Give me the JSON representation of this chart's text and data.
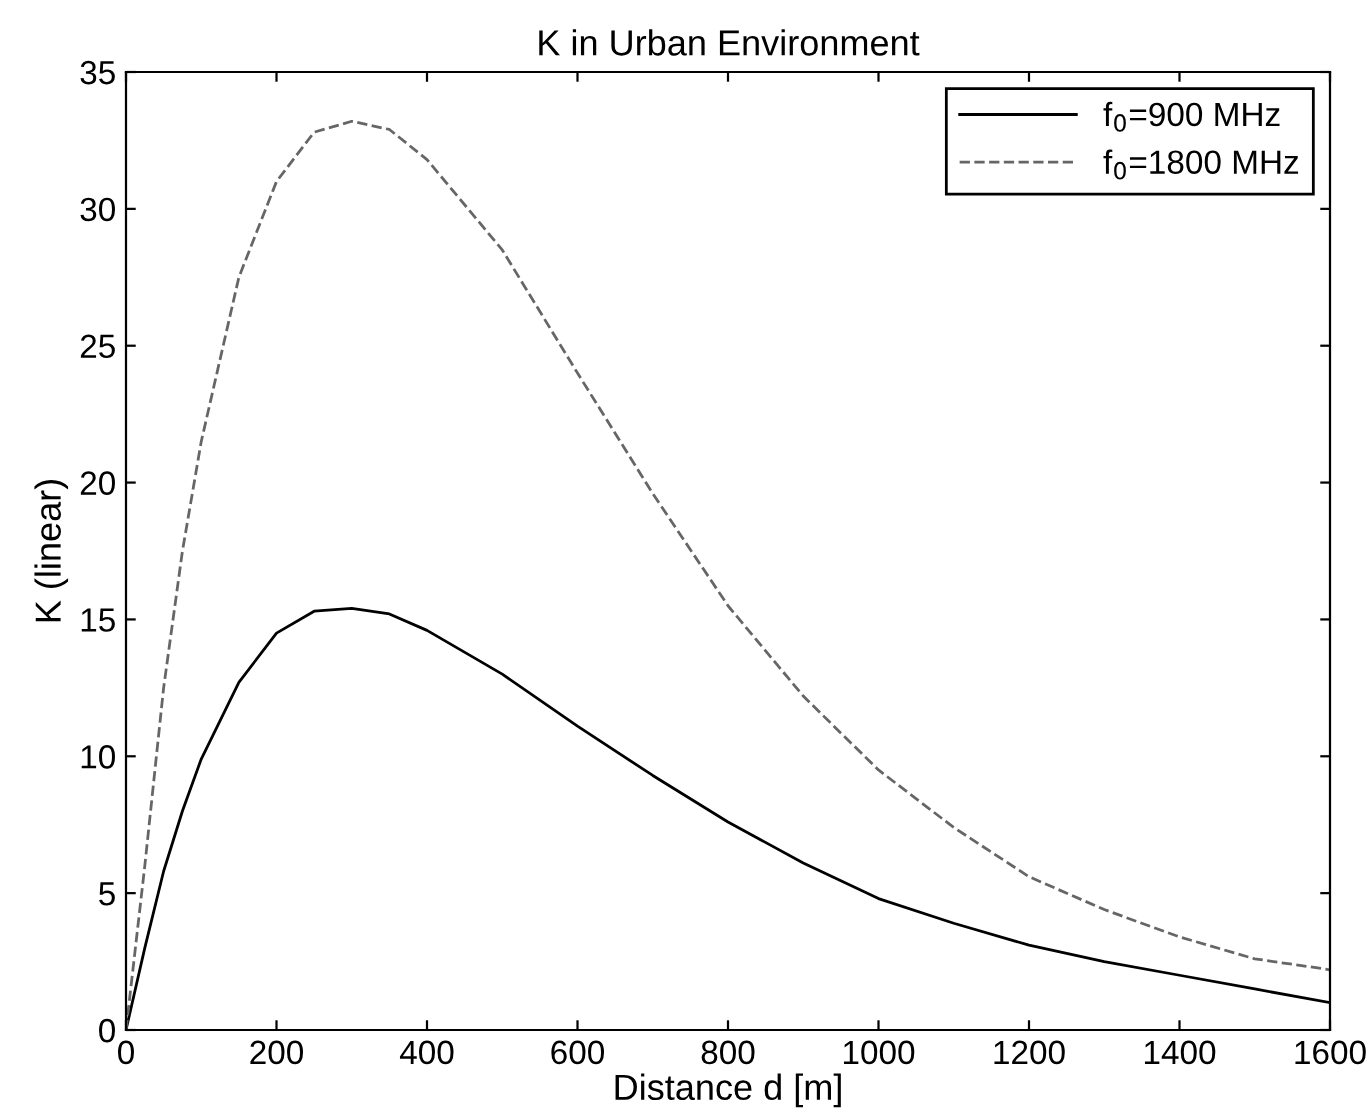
{
  "chart_data": {
    "type": "line",
    "title": "K in Urban Environment",
    "xlabel": "Distance d [m]",
    "ylabel": "K (linear)",
    "x": [
      0,
      25,
      50,
      75,
      100,
      150,
      200,
      250,
      300,
      350,
      400,
      500,
      600,
      700,
      800,
      900,
      1000,
      1100,
      1200,
      1300,
      1400,
      1500,
      1600
    ],
    "series": [
      {
        "name": "f$_{0}$=900 MHz",
        "color": "#000000",
        "line_style": "solid",
        "values": [
          0,
          3,
          5.8,
          8,
          9.9,
          12.7,
          14.5,
          15.3,
          15.4,
          15.2,
          14.6,
          13,
          11.1,
          9.3,
          7.6,
          6.1,
          4.8,
          3.9,
          3.1,
          2.5,
          2.0,
          1.5,
          1.0
        ]
      },
      {
        "name": "f$_{0}$=1800 MHz",
        "color": "#666666",
        "line_style": "dashed",
        "values": [
          0,
          6,
          12.5,
          17.5,
          21.5,
          27.5,
          31,
          32.8,
          33.2,
          32.9,
          31.8,
          28.5,
          24,
          19.6,
          15.5,
          12.2,
          9.5,
          7.4,
          5.6,
          4.4,
          3.4,
          2.6,
          2.2
        ]
      }
    ],
    "xlim": [
      0,
      1600
    ],
    "xticks": [
      0,
      200,
      400,
      600,
      800,
      1000,
      1200,
      1400,
      1600
    ],
    "ylim": [
      0,
      35
    ],
    "yticks": [
      0,
      5,
      10,
      15,
      20,
      25,
      30,
      35
    ],
    "grid": false,
    "legend": "top right",
    "marker": "none"
  }
}
